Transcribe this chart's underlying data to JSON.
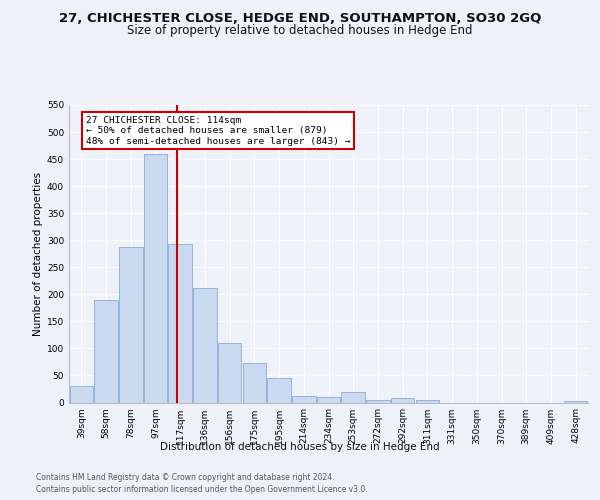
{
  "title1": "27, CHICHESTER CLOSE, HEDGE END, SOUTHAMPTON, SO30 2GQ",
  "title2": "Size of property relative to detached houses in Hedge End",
  "xlabel": "Distribution of detached houses by size in Hedge End",
  "ylabel": "Number of detached properties",
  "bar_labels": [
    "39sqm",
    "58sqm",
    "78sqm",
    "97sqm",
    "117sqm",
    "136sqm",
    "156sqm",
    "175sqm",
    "195sqm",
    "214sqm",
    "234sqm",
    "253sqm",
    "272sqm",
    "292sqm",
    "311sqm",
    "331sqm",
    "350sqm",
    "370sqm",
    "389sqm",
    "409sqm",
    "428sqm"
  ],
  "bar_values": [
    30,
    190,
    288,
    460,
    293,
    212,
    110,
    73,
    46,
    12,
    11,
    19,
    5,
    8,
    5,
    0,
    0,
    0,
    0,
    0,
    3
  ],
  "bar_color": "#c9d9f0",
  "bar_edge_color": "#7a9fd4",
  "vline_color": "#cc0000",
  "annotation_text": "27 CHICHESTER CLOSE: 114sqm\n← 50% of detached houses are smaller (879)\n48% of semi-detached houses are larger (843) →",
  "annotation_box_color": "#ffffff",
  "annotation_box_edge": "#cc0000",
  "ylim": [
    0,
    550
  ],
  "yticks": [
    0,
    50,
    100,
    150,
    200,
    250,
    300,
    350,
    400,
    450,
    500,
    550
  ],
  "footer1": "Contains HM Land Registry data © Crown copyright and database right 2024.",
  "footer2": "Contains public sector information licensed under the Open Government Licence v3.0.",
  "bg_color": "#eef2f8",
  "plot_bg_color": "#eef2f8",
  "grid_color": "#ffffff",
  "title1_fontsize": 9.5,
  "title2_fontsize": 8.5,
  "tick_fontsize": 6.5,
  "ylabel_fontsize": 7.5,
  "xlabel_fontsize": 7.5,
  "annotation_fontsize": 6.8,
  "footer_fontsize": 5.5
}
